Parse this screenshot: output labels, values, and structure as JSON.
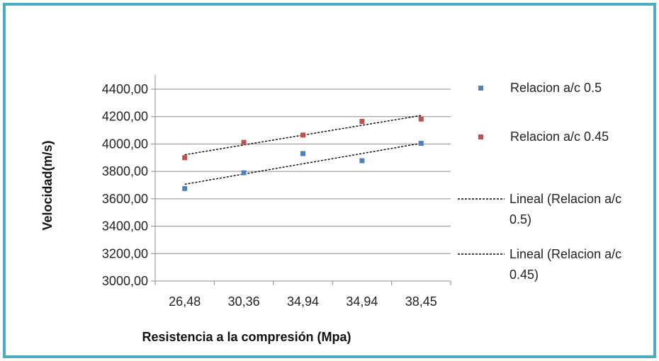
{
  "chart_data": {
    "type": "scatter",
    "title": "",
    "xlabel": "Resistencia a la compresión (Mpa)",
    "ylabel": "Velocidad(m/s)",
    "categories": [
      "26,48",
      "30,36",
      "34,94",
      "34,94",
      "38,45"
    ],
    "ylim": [
      3000,
      4400
    ],
    "yticks": [
      3000,
      3200,
      3400,
      3600,
      3800,
      4000,
      4200,
      4400
    ],
    "ytick_labels": [
      "3000,00",
      "3200,00",
      "3400,00",
      "3600,00",
      "3800,00",
      "4000,00",
      "4200,00",
      "4400,00"
    ],
    "grid": true,
    "legend_position": "right",
    "series": [
      {
        "name": "Relacion a/c 0.5",
        "color": "#4f81bd",
        "values": [
          3675,
          3790,
          3930,
          3878,
          4005
        ]
      },
      {
        "name": "Relacion a/c 0.45",
        "color": "#c0504d",
        "values": [
          3900,
          4012,
          4065,
          4165,
          4182
        ]
      }
    ],
    "trendlines": [
      {
        "legend_lines": [
          "Lineal (Relacion a/c",
          "0.5)"
        ],
        "series_index": 0,
        "color": "#000000"
      },
      {
        "legend_lines": [
          "Lineal (Relacion a/c",
          "0.45)"
        ],
        "series_index": 1,
        "color": "#000000"
      }
    ]
  }
}
